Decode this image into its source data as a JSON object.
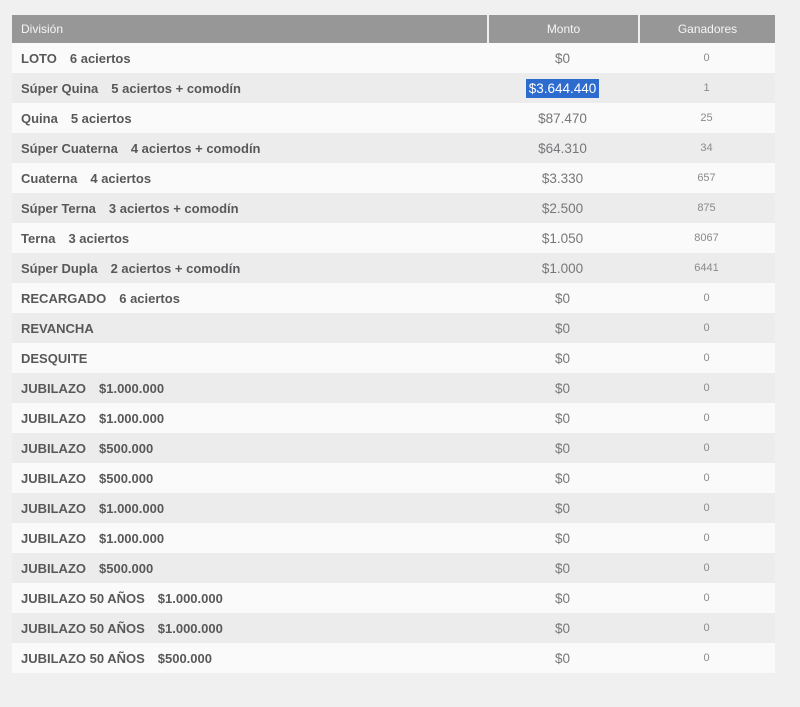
{
  "colors": {
    "page_bg": "#f0f0f0",
    "header_bg": "#979797",
    "header_text": "#f5f5f5",
    "header_divider": "#efefef",
    "row_odd_bg": "#fafafa",
    "row_even_bg": "#ececec",
    "division_text": "#58585a",
    "monto_text": "#77777a",
    "ganadores_text": "#8a8a8c",
    "selection_bg": "#2e6bce",
    "selection_text": "#ffffff"
  },
  "table": {
    "columns": [
      {
        "label": "División",
        "align": "left"
      },
      {
        "label": "Monto",
        "align": "center"
      },
      {
        "label": "Ganadores",
        "align": "center"
      }
    ],
    "rows": [
      {
        "name": "LOTO",
        "detail": "6 aciertos",
        "monto": "$0",
        "ganadores": "0",
        "highlighted": false
      },
      {
        "name": "Súper Quina",
        "detail": "5 aciertos + comodín",
        "monto": "$3.644.440",
        "ganadores": "1",
        "highlighted": true
      },
      {
        "name": "Quina",
        "detail": "5 aciertos",
        "monto": "$87.470",
        "ganadores": "25",
        "highlighted": false
      },
      {
        "name": "Súper Cuaterna",
        "detail": "4 aciertos + comodín",
        "monto": "$64.310",
        "ganadores": "34",
        "highlighted": false
      },
      {
        "name": "Cuaterna",
        "detail": "4 aciertos",
        "monto": "$3.330",
        "ganadores": "657",
        "highlighted": false
      },
      {
        "name": "Súper Terna",
        "detail": "3 aciertos + comodín",
        "monto": "$2.500",
        "ganadores": "875",
        "highlighted": false
      },
      {
        "name": "Terna",
        "detail": "3 aciertos",
        "monto": "$1.050",
        "ganadores": "8067",
        "highlighted": false
      },
      {
        "name": "Súper Dupla",
        "detail": "2 aciertos + comodín",
        "monto": "$1.000",
        "ganadores": "6441",
        "highlighted": false
      },
      {
        "name": "RECARGADO",
        "detail": "6 aciertos",
        "monto": "$0",
        "ganadores": "0",
        "highlighted": false
      },
      {
        "name": "REVANCHA",
        "detail": "",
        "monto": "$0",
        "ganadores": "0",
        "highlighted": false
      },
      {
        "name": "DESQUITE",
        "detail": "",
        "monto": "$0",
        "ganadores": "0",
        "highlighted": false
      },
      {
        "name": "JUBILAZO",
        "detail": "$1.000.000",
        "monto": "$0",
        "ganadores": "0",
        "highlighted": false
      },
      {
        "name": "JUBILAZO",
        "detail": "$1.000.000",
        "monto": "$0",
        "ganadores": "0",
        "highlighted": false
      },
      {
        "name": "JUBILAZO",
        "detail": "$500.000",
        "monto": "$0",
        "ganadores": "0",
        "highlighted": false
      },
      {
        "name": "JUBILAZO",
        "detail": "$500.000",
        "monto": "$0",
        "ganadores": "0",
        "highlighted": false
      },
      {
        "name": "JUBILAZO",
        "detail": "$1.000.000",
        "monto": "$0",
        "ganadores": "0",
        "highlighted": false
      },
      {
        "name": "JUBILAZO",
        "detail": "$1.000.000",
        "monto": "$0",
        "ganadores": "0",
        "highlighted": false
      },
      {
        "name": "JUBILAZO",
        "detail": "$500.000",
        "monto": "$0",
        "ganadores": "0",
        "highlighted": false
      },
      {
        "name": "JUBILAZO 50 AÑOS",
        "detail": "$1.000.000",
        "monto": "$0",
        "ganadores": "0",
        "highlighted": false
      },
      {
        "name": "JUBILAZO 50 AÑOS",
        "detail": "$1.000.000",
        "monto": "$0",
        "ganadores": "0",
        "highlighted": false
      },
      {
        "name": "JUBILAZO 50 AÑOS",
        "detail": "$500.000",
        "monto": "$0",
        "ganadores": "0",
        "highlighted": false
      }
    ]
  }
}
